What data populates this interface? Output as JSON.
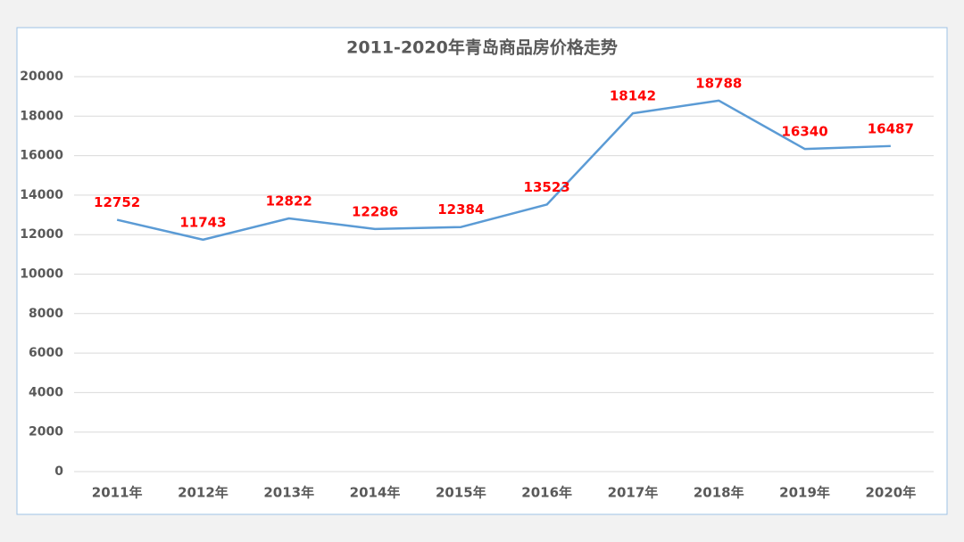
{
  "chart_data": {
    "type": "line",
    "title": "2011-2020年青岛商品房价格走势",
    "categories": [
      "2011年",
      "2012年",
      "2013年",
      "2014年",
      "2015年",
      "2016年",
      "2017年",
      "2018年",
      "2019年",
      "2020年"
    ],
    "series": [
      {
        "name": "青岛商品房价格",
        "color": "#5b9bd5",
        "values": [
          12752,
          11743,
          12822,
          12286,
          12384,
          13523,
          18142,
          18788,
          16340,
          16487
        ]
      }
    ],
    "label_color": "#ff0000",
    "ylim": [
      0,
      20000
    ],
    "yticks": [
      0,
      2000,
      4000,
      6000,
      8000,
      10000,
      12000,
      14000,
      16000,
      18000,
      20000
    ],
    "grid": true
  }
}
